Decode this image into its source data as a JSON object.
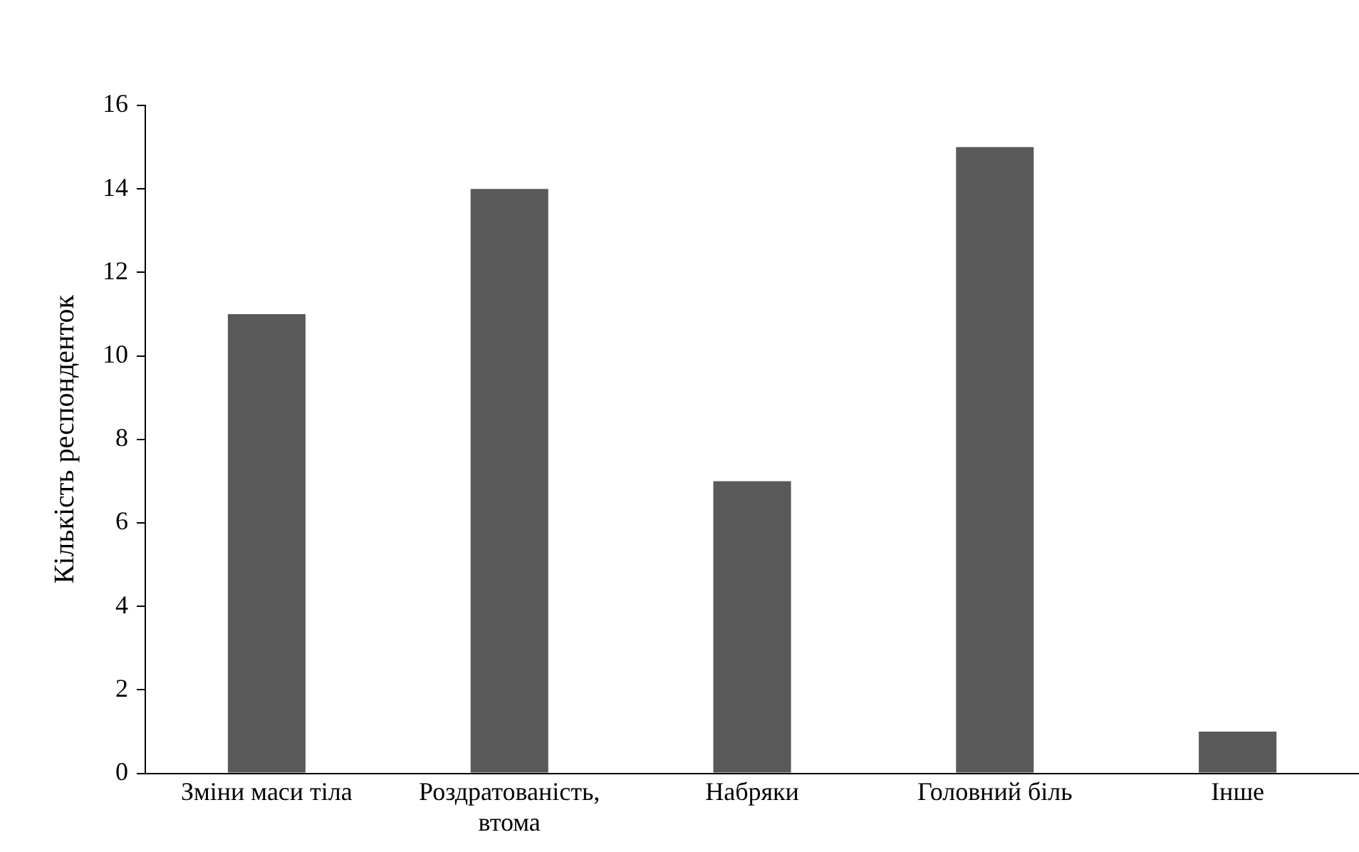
{
  "chart_data": {
    "type": "bar",
    "ylabel": "Кількість респонденток",
    "categories": [
      "Зміни маси тіла",
      "Роздратованість, втома",
      "Набряки",
      "Головний біль",
      "Інше"
    ],
    "values": [
      11,
      14,
      7,
      15,
      1
    ],
    "color": "#595959",
    "ylim": [
      0,
      16
    ],
    "yticks": [
      0,
      2,
      4,
      6,
      8,
      10,
      12,
      14,
      16
    ],
    "grid": false,
    "legend": false
  }
}
